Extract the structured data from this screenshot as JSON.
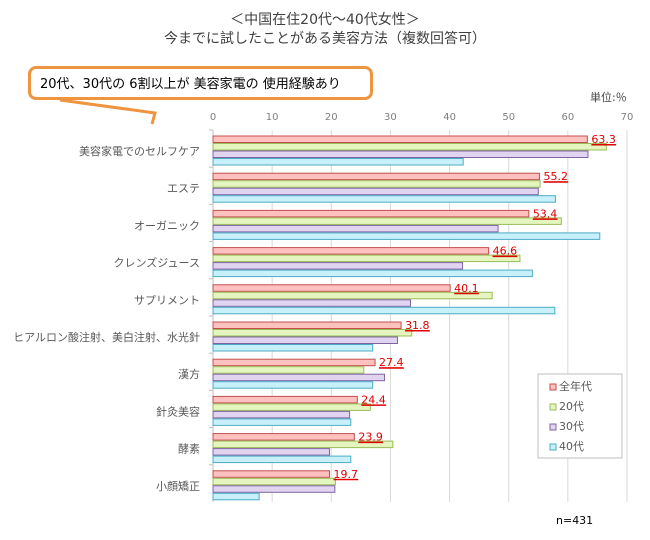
{
  "chart_data": {
    "type": "bar",
    "orientation": "horizontal",
    "title": "＜中国在住20代～40代女性＞",
    "subtitle": "今までに試したことがある美容方法（複数回答可）",
    "annotation": "20代、30代の 6割以上が 美容家電の 使用経験あり",
    "unit_label": "単位:％",
    "sample_size": "n=431",
    "xlim": [
      0,
      70
    ],
    "xticks": [
      "0",
      "10",
      "20",
      "30",
      "40",
      "50",
      "60",
      "70"
    ],
    "grid": true,
    "legend_position": "right",
    "categories": [
      "美容家電でのセルフケア",
      "エステ",
      "オーガニック",
      "クレンズジュース",
      "サプリメント",
      "ヒアルロン酸注射、美白注射、水光針",
      "漢方",
      "針灸美容",
      "酵素",
      "小顔矯正"
    ],
    "series": [
      {
        "name": "全年代",
        "color": "#ffc0c0",
        "stroke": "#c0504d",
        "values": [
          63.3,
          55.2,
          53.4,
          46.6,
          40.1,
          31.8,
          27.4,
          24.4,
          23.9,
          19.7
        ]
      },
      {
        "name": "20代",
        "color": "#e4f5c0",
        "stroke": "#9bbb59",
        "values": [
          66.5,
          55.3,
          58.9,
          51.9,
          47.2,
          33.6,
          25.5,
          26.6,
          30.4,
          20.7
        ]
      },
      {
        "name": "30代",
        "color": "#e0d4f0",
        "stroke": "#8064a2",
        "values": [
          63.4,
          55.0,
          48.2,
          42.2,
          33.4,
          31.2,
          29.0,
          23.1,
          19.7,
          20.6
        ]
      },
      {
        "name": "40代",
        "color": "#c8f0fa",
        "stroke": "#4bacc6",
        "values": [
          42.3,
          57.9,
          65.4,
          54.0,
          57.8,
          27.0,
          27.0,
          23.3,
          23.3,
          7.8
        ]
      }
    ],
    "data_labels": [
      "63.3",
      "55.2",
      "53.4",
      "46.6",
      "40.1",
      "31.8",
      "27.4",
      "24.4",
      "23.9",
      "19.7"
    ]
  }
}
